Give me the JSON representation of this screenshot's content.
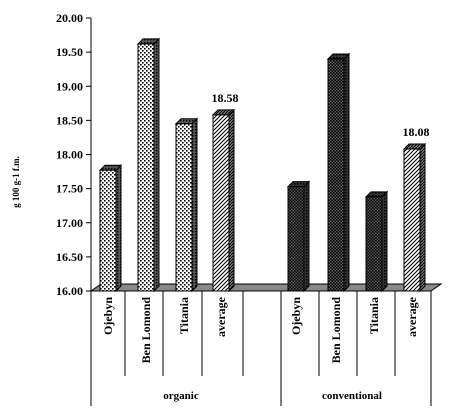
{
  "chart_data": {
    "type": "bar",
    "ylabel": "g 100 g-1 f.m.",
    "ylim": [
      16.0,
      20.0
    ],
    "yticks": [
      "16.00",
      "16.50",
      "17.00",
      "17.50",
      "18.00",
      "18.50",
      "19.00",
      "19.50",
      "20.00"
    ],
    "ytick_values": [
      16.0,
      16.5,
      17.0,
      17.5,
      18.0,
      18.5,
      19.0,
      19.5,
      20.0
    ],
    "groups": [
      {
        "name": "organic",
        "categories": [
          "Ojebyn",
          "Ben Lomond",
          "Titania",
          "average"
        ],
        "values": [
          17.77,
          19.62,
          18.45,
          18.58
        ],
        "patterns": [
          "dots",
          "dots",
          "dots",
          "diagonal"
        ]
      },
      {
        "name": "conventional",
        "categories": [
          "Ojebyn",
          "Ben Lomond",
          "Titania",
          "average"
        ],
        "values": [
          17.53,
          19.4,
          17.38,
          18.08
        ],
        "patterns": [
          "crosshatch",
          "crosshatch",
          "crosshatch",
          "diagonal"
        ]
      }
    ],
    "data_labels": [
      {
        "group": 0,
        "index": 3,
        "text": "18.58"
      },
      {
        "group": 1,
        "index": 3,
        "text": "18.08"
      }
    ],
    "grid": false,
    "legend": "none"
  }
}
